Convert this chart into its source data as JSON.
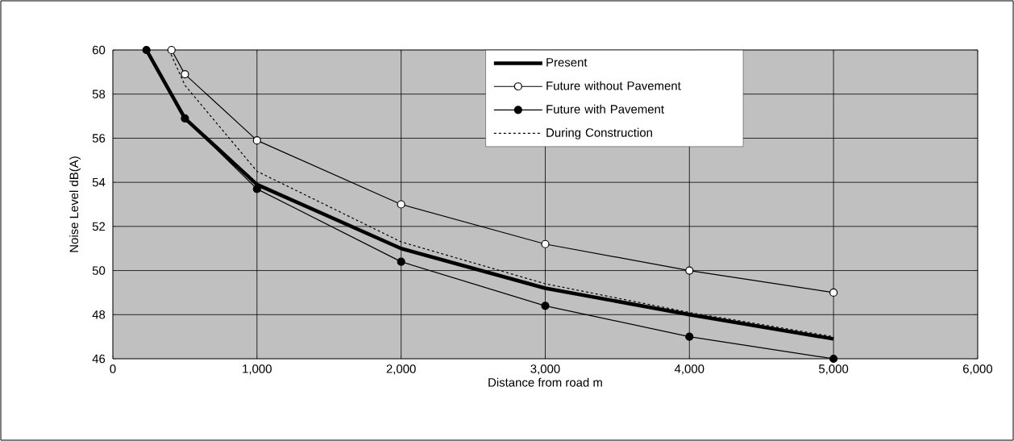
{
  "chart_data": {
    "type": "line",
    "xlabel": "Distance from road m",
    "ylabel": "Noise Level dB(A)",
    "xlim": [
      0,
      6000
    ],
    "ylim": [
      46,
      60
    ],
    "xticks": [
      {
        "value": 0,
        "label": "0"
      },
      {
        "value": 1000,
        "label": "1,000"
      },
      {
        "value": 2000,
        "label": "2,000"
      },
      {
        "value": 3000,
        "label": "3,000"
      },
      {
        "value": 4000,
        "label": "4,000"
      },
      {
        "value": 5000,
        "label": "5,000"
      },
      {
        "value": 6000,
        "label": "6,000"
      }
    ],
    "yticks": [
      46,
      48,
      50,
      52,
      54,
      56,
      58,
      60
    ],
    "grid": true,
    "legend": "top right",
    "series": [
      {
        "name": "Present",
        "color": "#000000",
        "marker": "none",
        "line_style": "solid",
        "x": [
          233,
          500,
          1000,
          2000,
          3000,
          4000,
          5000
        ],
        "values": [
          60,
          56.9,
          53.9,
          51.0,
          49.2,
          48.0,
          46.9
        ]
      },
      {
        "name": "Future without Pavement",
        "color": "#000000",
        "marker": "circle",
        "line_style": "solid",
        "x": [
          407,
          500,
          1000,
          2000,
          3000,
          4000,
          5000
        ],
        "values": [
          60,
          58.9,
          55.9,
          53.0,
          51.2,
          50.0,
          49.0
        ]
      },
      {
        "name": "Future with Pavement",
        "color": "#000000",
        "marker": "circle",
        "line_style": "solid",
        "x": [
          233,
          500,
          1000,
          2000,
          3000,
          4000,
          5000
        ],
        "values": [
          60,
          56.9,
          53.7,
          50.4,
          48.4,
          47.0,
          46.0
        ]
      },
      {
        "name": "During Construction",
        "color": "#000000",
        "marker": "none",
        "line_style": "dashed",
        "x": [
          390,
          500,
          1000,
          2000,
          3000,
          4000,
          5000
        ],
        "values": [
          60,
          58.4,
          54.5,
          51.3,
          49.4,
          48.1,
          47.0
        ]
      }
    ]
  }
}
